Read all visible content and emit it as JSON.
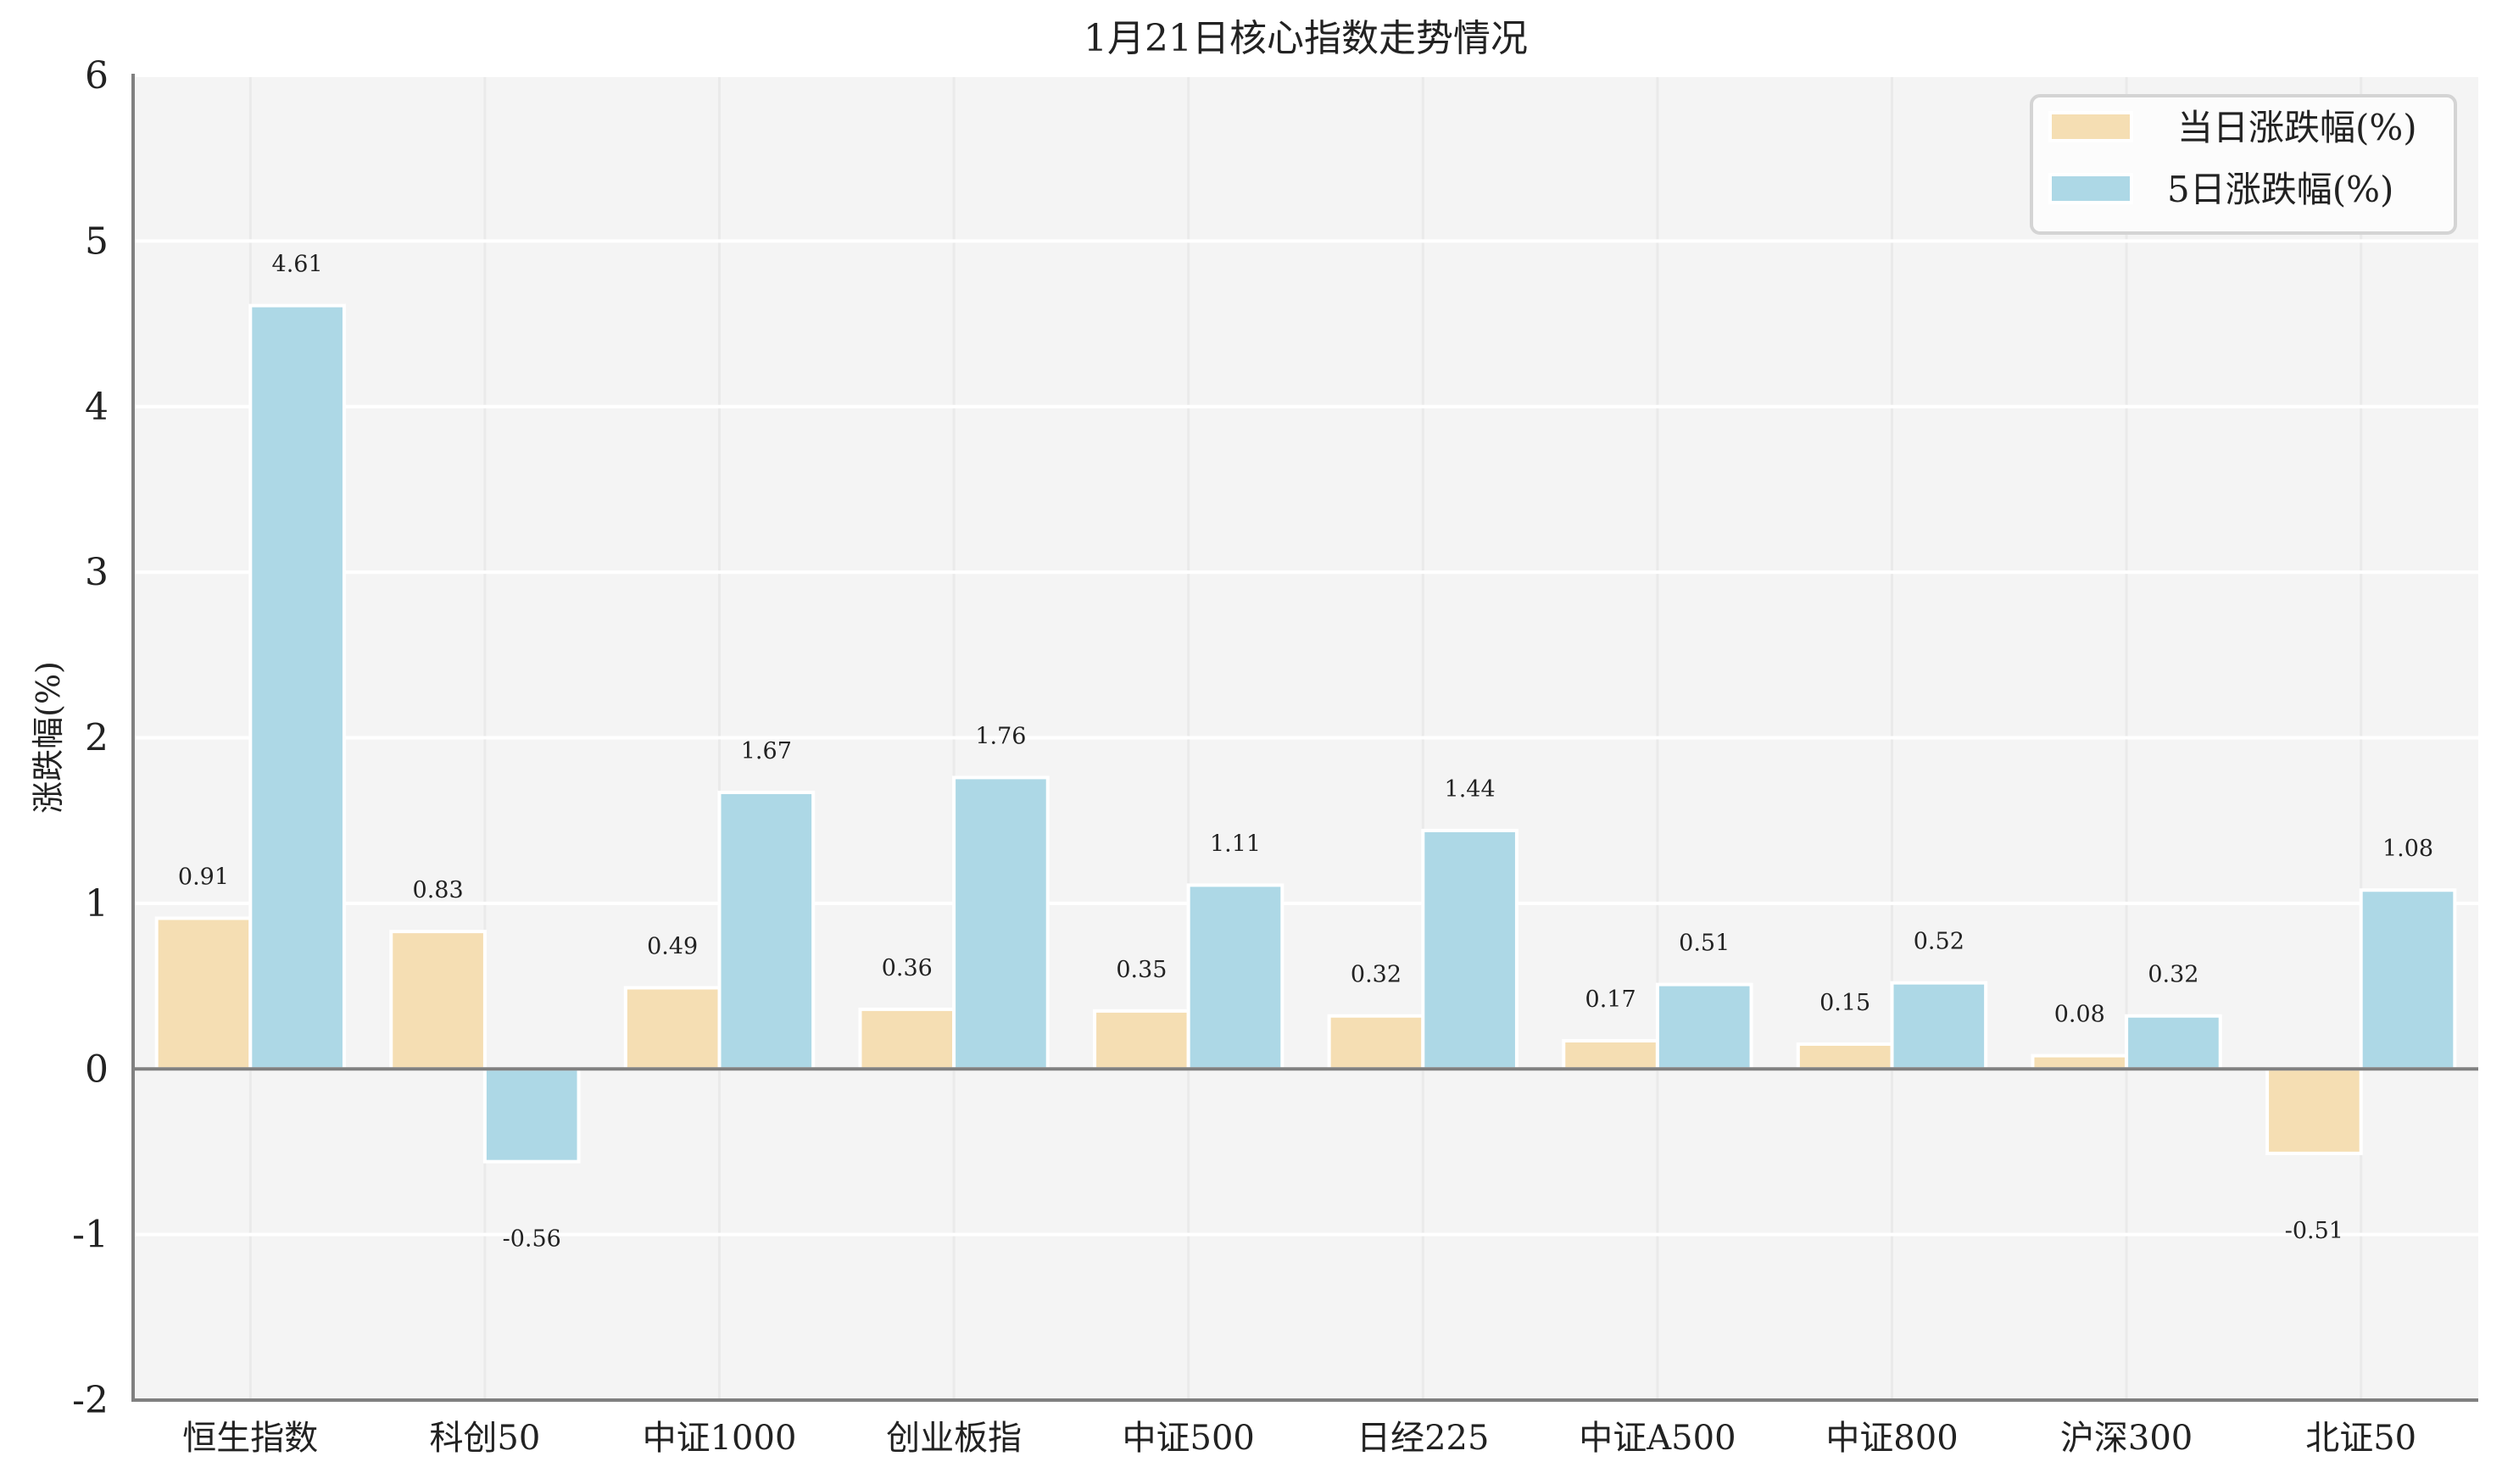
{
  "chart_data": {
    "type": "bar",
    "title": "1月21日核心指数走势情况",
    "xlabel": "",
    "ylabel": "涨跌幅(%)",
    "ylim": [
      -2,
      6
    ],
    "yticks": [
      -2,
      -1,
      0,
      1,
      2,
      3,
      4,
      5,
      6
    ],
    "grid": true,
    "legend_position": "upper right",
    "categories": [
      "恒生指数",
      "科创50",
      "中证1000",
      "创业板指",
      "中证500",
      "日经225",
      "中证A500",
      "中证800",
      "沪深300",
      "北证50"
    ],
    "series": [
      {
        "name": "当日涨跌幅(%)",
        "color": "#F5DEB3",
        "values": [
          0.91,
          0.83,
          0.49,
          0.36,
          0.35,
          0.32,
          0.17,
          0.15,
          0.08,
          -0.51
        ]
      },
      {
        "name": "5日涨跌幅(%)",
        "color": "#ADD8E6",
        "values": [
          4.61,
          -0.56,
          1.67,
          1.76,
          1.11,
          1.44,
          0.51,
          0.52,
          0.32,
          1.08
        ]
      }
    ]
  },
  "style": {
    "plot_bg": "#F4F4F4",
    "grid_color": "#FFFFFF",
    "vgrid_color": "#EAEAEA",
    "axis_color": "#808080",
    "bar_edge": "#FFFFFF",
    "legend_bg": "#FCFCFC",
    "legend_border": "#D4D4D4"
  }
}
